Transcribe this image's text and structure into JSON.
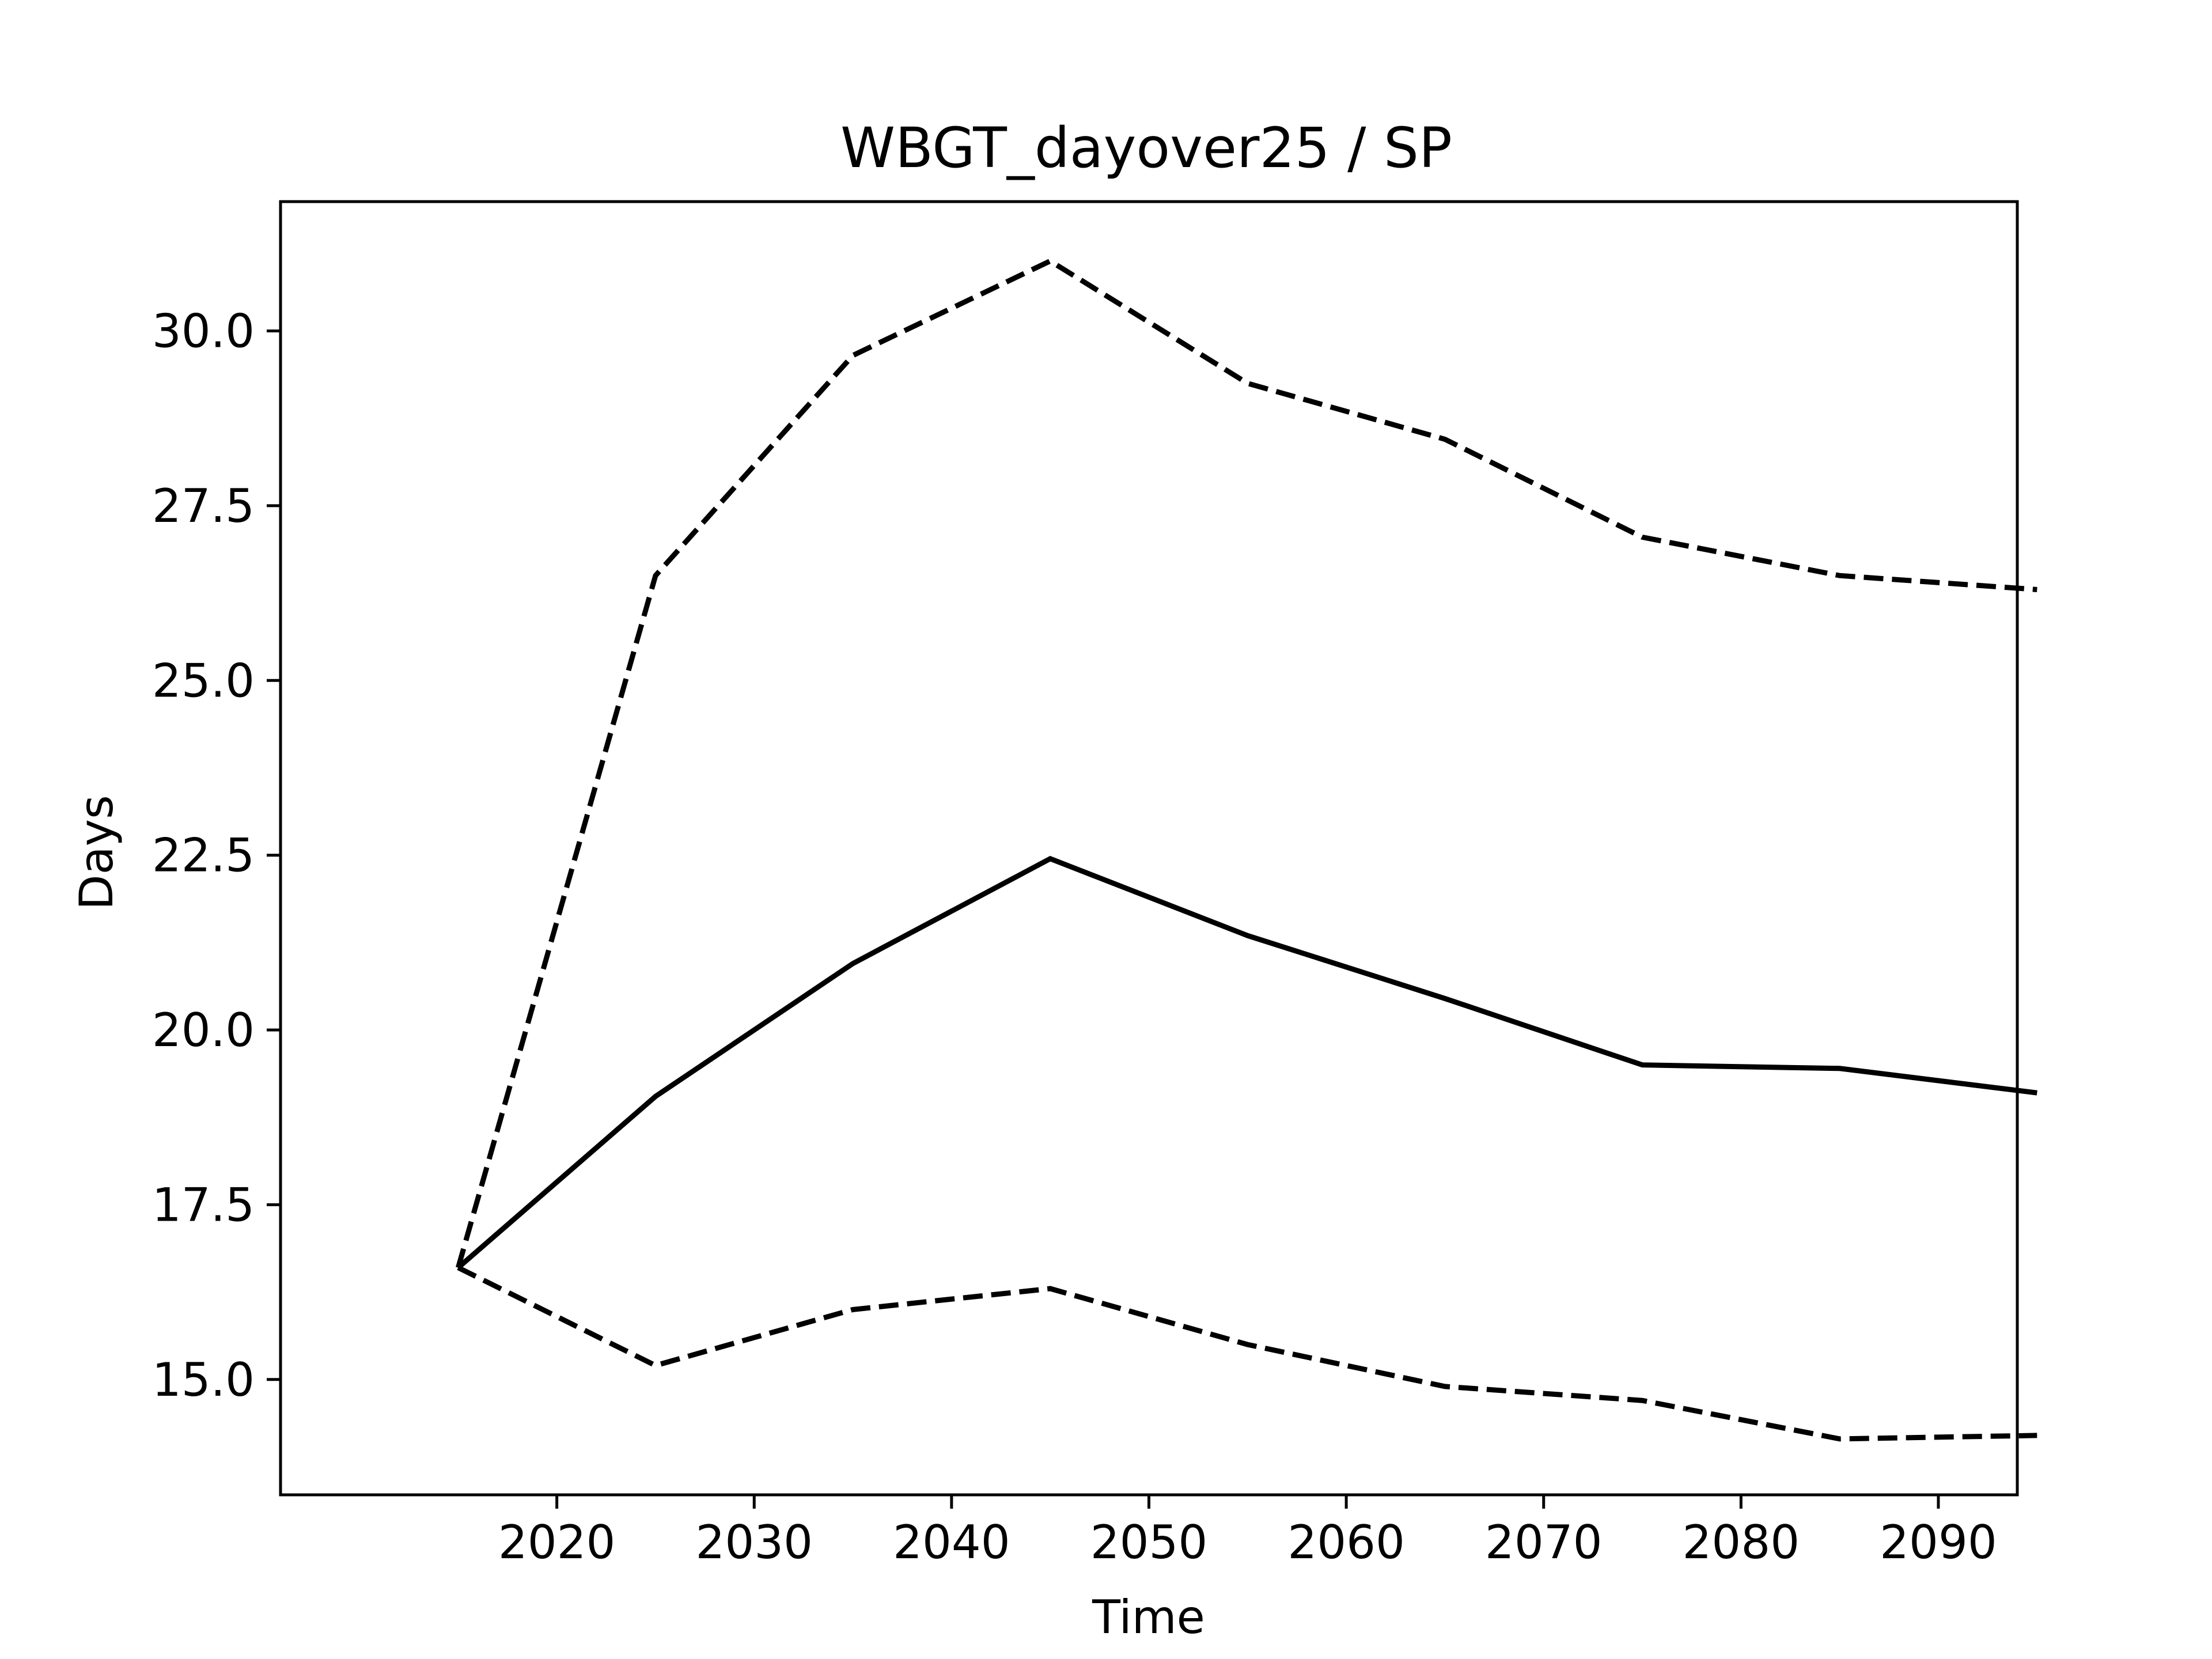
{
  "chart_data": {
    "type": "line",
    "title": "WBGT_dayover25 / SP",
    "xlabel": "Time",
    "ylabel": "Days",
    "x": [
      2015,
      2025,
      2035,
      2045,
      2055,
      2065,
      2075,
      2085,
      2095
    ],
    "xlim": [
      2006,
      2094
    ],
    "ylim": [
      13.35,
      31.85
    ],
    "xticks": [
      2020,
      2030,
      2040,
      2050,
      2060,
      2070,
      2080,
      2090
    ],
    "xtick_labels": [
      "2020",
      "2030",
      "2040",
      "2050",
      "2060",
      "2070",
      "2080",
      "2090"
    ],
    "yticks": [
      15.0,
      17.5,
      20.0,
      22.5,
      25.0,
      27.5,
      30.0
    ],
    "ytick_labels": [
      "15.0",
      "17.5",
      "20.0",
      "22.5",
      "25.0",
      "27.5",
      "30.0"
    ],
    "grid": false,
    "legend": "none",
    "series": [
      {
        "style": "dashed",
        "color": "#000000",
        "values": [
          16.6,
          26.5,
          29.65,
          31.0,
          29.25,
          28.45,
          27.05,
          26.5,
          26.3
        ]
      },
      {
        "style": "solid",
        "color": "#000000",
        "values": [
          16.6,
          19.05,
          20.95,
          22.45,
          21.35,
          20.45,
          19.5,
          19.45,
          19.1
        ]
      },
      {
        "style": "dashed",
        "color": "#000000",
        "values": [
          16.6,
          15.2,
          16.0,
          16.3,
          15.5,
          14.9,
          14.7,
          14.15,
          14.2
        ]
      }
    ]
  }
}
